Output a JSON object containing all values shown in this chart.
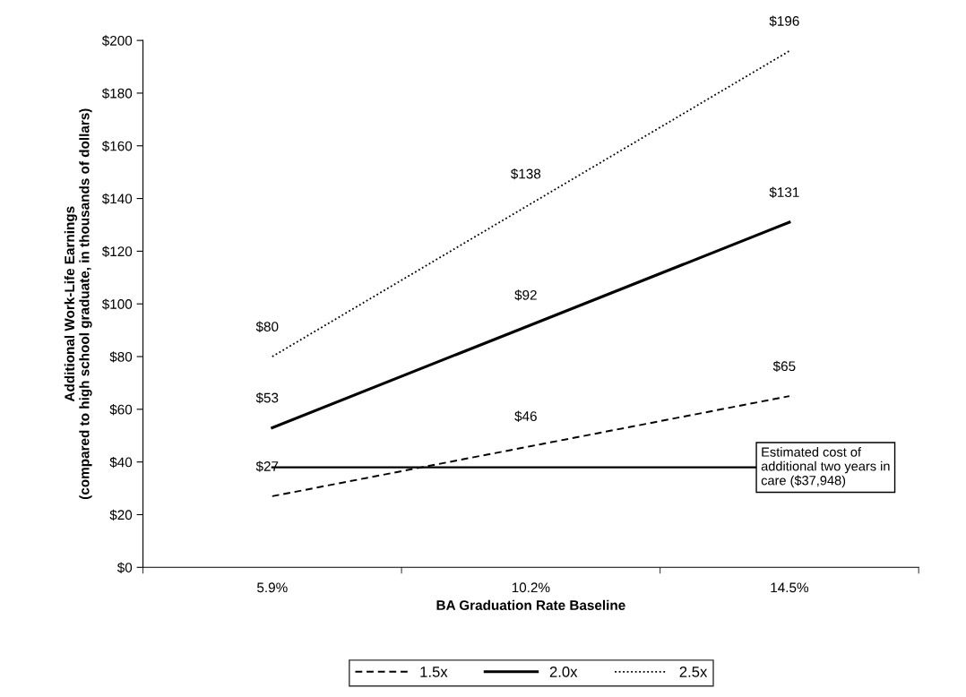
{
  "chart_data": {
    "type": "line",
    "xlabel": "BA Graduation Rate Baseline",
    "ylabel": "Additional Work-Life Earnings\n(compared to high school graduate, in thousands of dollars)",
    "categories": [
      "5.9%",
      "10.2%",
      "14.5%"
    ],
    "series": [
      {
        "name": "1.5x",
        "color": "#000000",
        "line_style": "dashed",
        "values": [
          27,
          46,
          65
        ],
        "value_labels": [
          "$27",
          "$46",
          "$65"
        ]
      },
      {
        "name": "2.0x",
        "color": "#000000",
        "line_style": "solid",
        "values": [
          53,
          92,
          131
        ],
        "value_labels": [
          "$53",
          "$92",
          "$131"
        ]
      },
      {
        "name": "2.5x",
        "color": "#000000",
        "line_style": "dotted",
        "values": [
          80,
          138,
          196
        ],
        "value_labels": [
          "$80",
          "$138",
          "$196"
        ]
      }
    ],
    "ylim": [
      0,
      200
    ],
    "yticks": [
      {
        "value": 0,
        "label": "$0"
      },
      {
        "value": 20,
        "label": "$20"
      },
      {
        "value": 40,
        "label": "$40"
      },
      {
        "value": 60,
        "label": "$60"
      },
      {
        "value": 80,
        "label": "$80"
      },
      {
        "value": 100,
        "label": "$100"
      },
      {
        "value": 120,
        "label": "$120"
      },
      {
        "value": 140,
        "label": "$140"
      },
      {
        "value": 160,
        "label": "$160"
      },
      {
        "value": 180,
        "label": "$180"
      },
      {
        "value": 200,
        "label": "$200"
      }
    ],
    "ref_lines": [
      {
        "axis": "y",
        "value": 37.948,
        "label": "Estimated cost of\nadditional two years in\ncare ($37,948)",
        "color": "#000000",
        "line_style": "solid"
      }
    ],
    "grid": false,
    "legend": "bottom",
    "marker": "none"
  }
}
